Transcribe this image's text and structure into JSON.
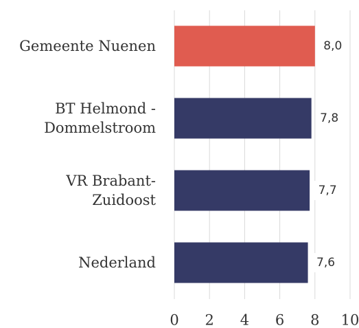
{
  "chart_data": {
    "type": "bar",
    "orientation": "horizontal",
    "categories": [
      "Gemeente Nuenen",
      "BT Helmond -\nDommelstroom",
      "VR Brabant-\nZuidoost",
      "Nederland"
    ],
    "values": [
      8.0,
      7.8,
      7.7,
      7.6
    ],
    "value_labels": [
      "8,0",
      "7,8",
      "7,7",
      "7,6"
    ],
    "colors": [
      "#e05c50",
      "#353a66",
      "#353a66",
      "#353a66"
    ],
    "xlim": [
      0,
      10
    ],
    "xticks": [
      0,
      2,
      4,
      6,
      8,
      10
    ],
    "grid": true
  }
}
